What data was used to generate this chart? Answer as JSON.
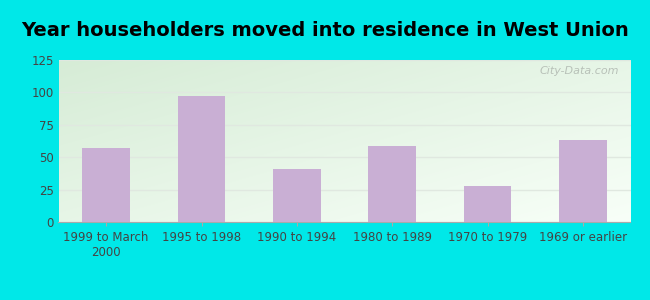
{
  "title": "Year householders moved into residence in West Union",
  "categories": [
    "1999 to March\n2000",
    "1995 to 1998",
    "1990 to 1994",
    "1980 to 1989",
    "1970 to 1979",
    "1969 or earlier"
  ],
  "values": [
    57,
    97,
    41,
    59,
    28,
    63
  ],
  "bar_color": "#c9afd4",
  "ylim": [
    0,
    125
  ],
  "yticks": [
    0,
    25,
    50,
    75,
    100,
    125
  ],
  "background_outer": "#00e8e8",
  "bg_top_left": "#d6ecd6",
  "bg_bottom_right": "#f8fff8",
  "grid_color": "#e0e8e0",
  "watermark_text": "City-Data.com",
  "watermark_color": "#b0b8b0",
  "title_fontsize": 14,
  "tick_fontsize": 8.5,
  "title_fontweight": "bold"
}
